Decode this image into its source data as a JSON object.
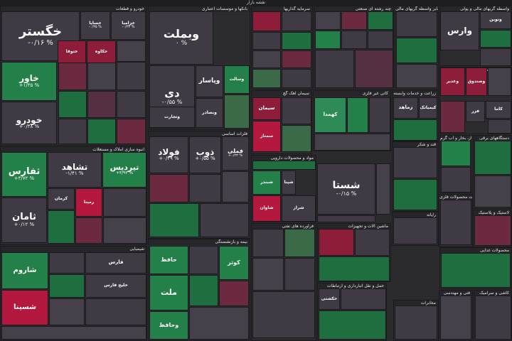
{
  "title": "نقشه بازار",
  "sectors": [
    {
      "id": "auto",
      "label": "خودرو و قطعات"
    },
    {
      "id": "banks",
      "label": "بانکها و موسسات اعتباری"
    },
    {
      "id": "investment",
      "label": "سرمایه گذاریها"
    },
    {
      "id": "multi",
      "label": "چند رشته ای صنعتی"
    },
    {
      "id": "other_fin",
      "label": "سایر واسطه گریهای مالی"
    },
    {
      "id": "fin_agents",
      "label": "واسطه گریهای مالی و پولی"
    },
    {
      "id": "mining",
      "label": "استخراج کانه های فلزی"
    },
    {
      "id": "basic_metals",
      "label": "فلزات اساسی"
    },
    {
      "id": "cement",
      "label": "سیمان آهک گچ"
    },
    {
      "id": "non_metal",
      "label": "کانی غیر فلزی"
    },
    {
      "id": "agri",
      "label": "زراعت و خدمات وابسته"
    },
    {
      "id": "petrol",
      "label": "فراورده های نفتی"
    },
    {
      "id": "it",
      "label": "رایانه"
    },
    {
      "id": "insurance",
      "label": "بیمه و بازنشستگی"
    },
    {
      "id": "chemical",
      "label": "شیمیایی"
    },
    {
      "id": "transport",
      "label": "حمل و نقل انبارداری و ارتباطات"
    },
    {
      "id": "telecom",
      "label": "مخابرات"
    },
    {
      "id": "food",
      "label": "محصولات غذایی"
    },
    {
      "id": "pharma",
      "label": "مواد و محصولات دارویی"
    },
    {
      "id": "rubber",
      "label": "لاستیک و پلاستیک"
    },
    {
      "id": "sugar",
      "label": "قند و شکر"
    },
    {
      "id": "machinery",
      "label": "ماشین آلات و تجهیزات"
    },
    {
      "id": "metal_products",
      "label": "ساخت محصولات فلزی"
    },
    {
      "id": "electrical",
      "label": "دستگاههای برقی"
    },
    {
      "id": "utilities",
      "label": "عرضه برق، گاز، بخار و آب گرم"
    },
    {
      "id": "engineering",
      "label": "فنی و مهندسی"
    },
    {
      "id": "real_estate",
      "label": "انبوه سازی املاک و مستغلات"
    },
    {
      "id": "tile",
      "label": "کاشی و سرامیک"
    }
  ],
  "tiles": [
    {
      "name": "خگستر",
      "pct": "-۰/۱۶ %"
    },
    {
      "name": "خساپا",
      "pct": "-۰/۳۵ %"
    },
    {
      "name": "خزامیا",
      "pct": "-۰/۳۳ %"
    },
    {
      "name": "خاور",
      "pct": "+۱/۳۵ %"
    },
    {
      "name": "خودرو",
      "pct": "+۰/۴۸ %"
    },
    {
      "name": "ختوقا",
      "pct": ""
    },
    {
      "name": "خکاوه",
      "pct": ""
    },
    {
      "name": "وبملت",
      "pct": "۰ %"
    },
    {
      "name": "دی",
      "pct": "-۰/۵۵ %"
    },
    {
      "name": "وتجارت",
      "pct": ""
    },
    {
      "name": "وپاسار",
      "pct": ""
    },
    {
      "name": "وبصادر",
      "pct": ""
    },
    {
      "name": "وسالت",
      "pct": ""
    },
    {
      "name": "ثفارس",
      "pct": "+۳/۷۲ %"
    },
    {
      "name": "تشاهد",
      "pct": "-۱/۴۱ %"
    },
    {
      "name": "تیردیس",
      "pct": "+۴/۹۳ %"
    },
    {
      "name": "ثامان",
      "pct": "+۰/۱۲ %"
    },
    {
      "name": "فولاد",
      "pct": "+۰/۴۹ %"
    },
    {
      "name": "ذوب",
      "pct": "+۰/۵۵ %"
    },
    {
      "name": "فملی",
      "pct": "+۰/۲۳ %"
    },
    {
      "name": "شستا",
      "pct": "-۰/۱۵ %"
    },
    {
      "name": "شبندر",
      "pct": ""
    },
    {
      "name": "شپنا",
      "pct": ""
    },
    {
      "name": "شاوان",
      "pct": ""
    },
    {
      "name": "شراز",
      "pct": ""
    },
    {
      "name": "وارس",
      "pct": ""
    },
    {
      "name": "ونوین",
      "pct": ""
    },
    {
      "name": "کاما",
      "pct": ""
    },
    {
      "name": "فزر",
      "pct": ""
    },
    {
      "name": "وغدیر",
      "pct": ""
    },
    {
      "name": "وصندوق",
      "pct": ""
    },
    {
      "name": "سیمان",
      "pct": ""
    },
    {
      "name": "سمتاز",
      "pct": ""
    },
    {
      "name": "کهمدا",
      "pct": ""
    },
    {
      "name": "زماهد",
      "pct": ""
    },
    {
      "name": "کیمیاتک",
      "pct": ""
    },
    {
      "name": "فارس",
      "pct": ""
    },
    {
      "name": "خلیج فارس",
      "pct": ""
    },
    {
      "name": "شاروم",
      "pct": ""
    },
    {
      "name": "شسینا",
      "pct": ""
    },
    {
      "name": "حکشتی",
      "pct": ""
    },
    {
      "name": "کرمان",
      "pct": ""
    },
    {
      "name": "رمپنا",
      "pct": ""
    },
    {
      "name": "حافظ",
      "pct": ""
    },
    {
      "name": "ملت",
      "pct": ""
    },
    {
      "name": "کوثر",
      "pct": ""
    },
    {
      "name": "وحافظ",
      "pct": ""
    }
  ]
}
